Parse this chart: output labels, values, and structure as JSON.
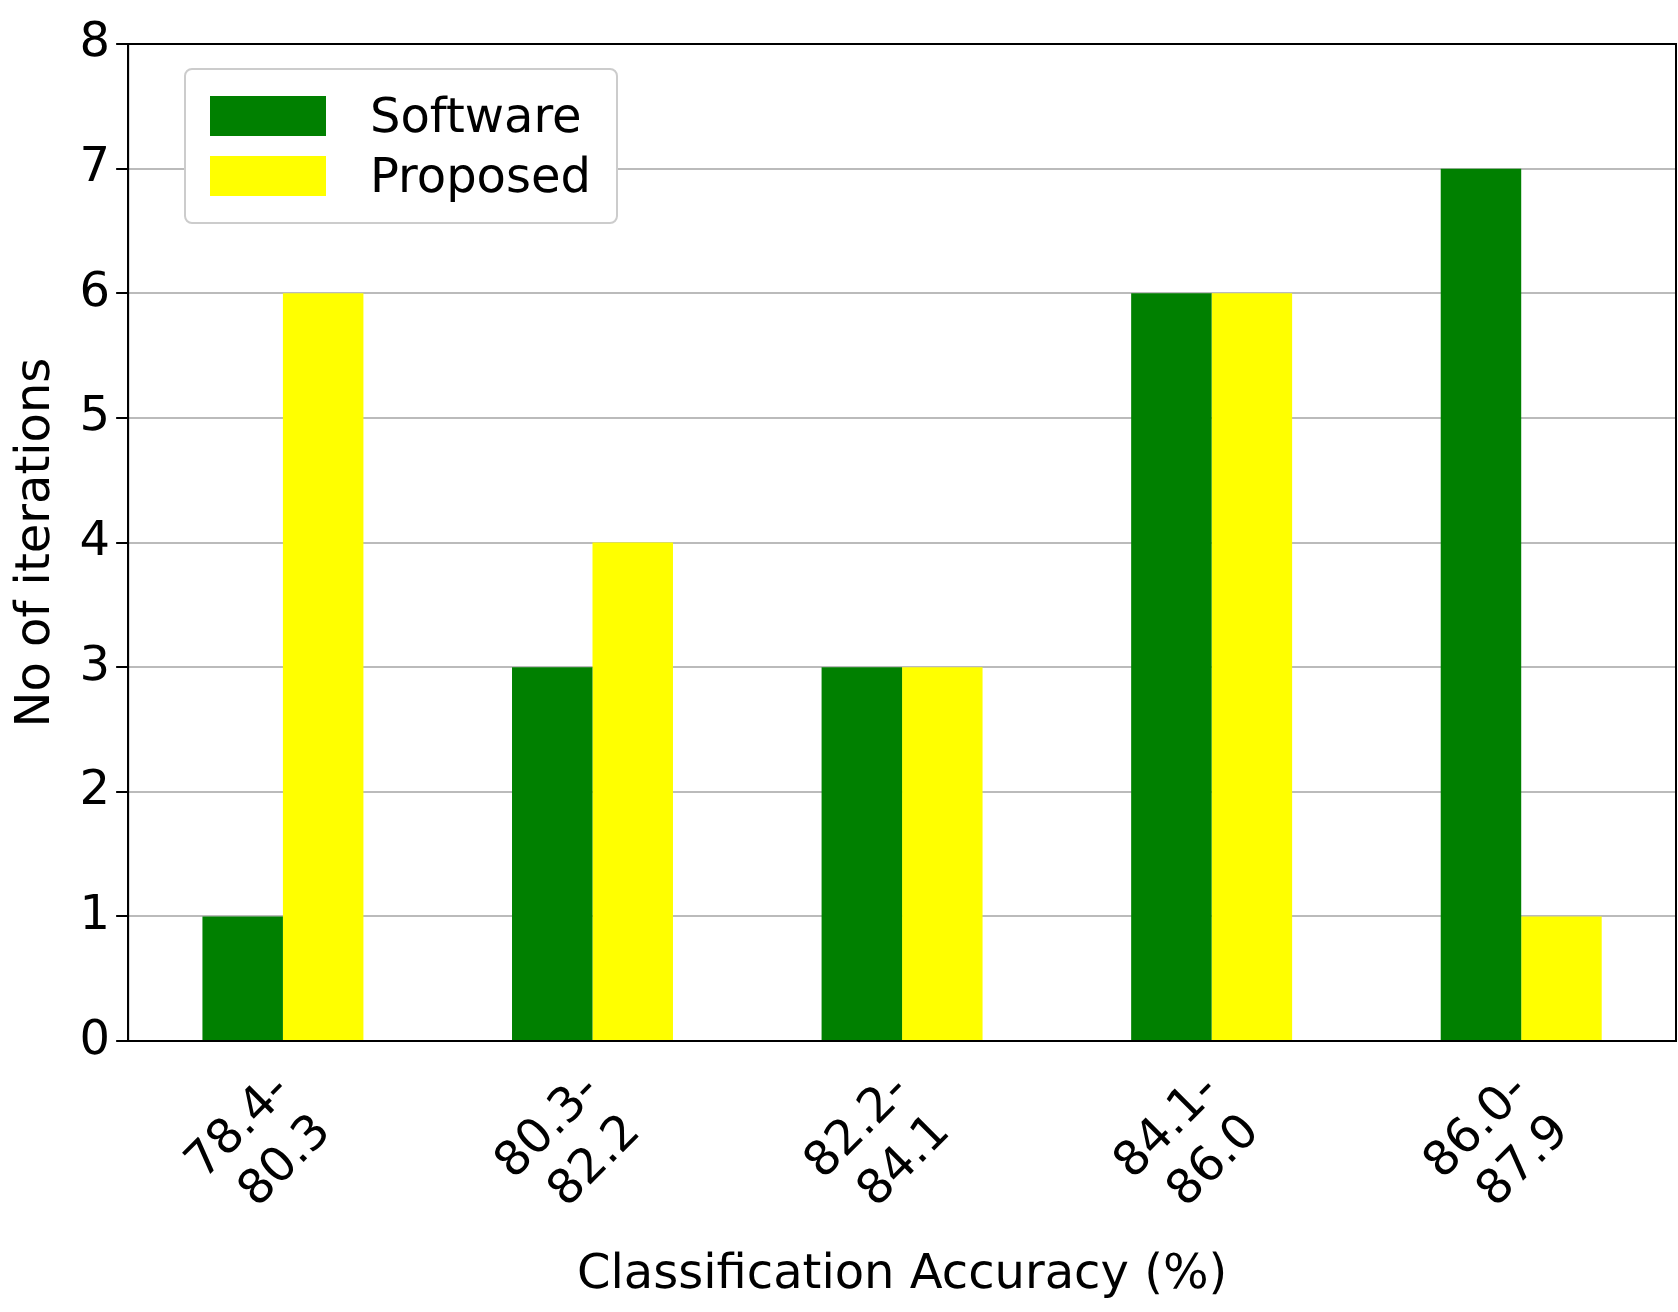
{
  "chart_data": {
    "type": "bar",
    "xlabel": "Classification Accuracy (%)",
    "ylabel": "No of iterations",
    "categories": [
      "78.4-80.3",
      "80.3-82.2",
      "82.2-84.1",
      "84.1-86.0",
      "86.0-87.9"
    ],
    "series": [
      {
        "name": "Software",
        "color": "#008000",
        "values": [
          1,
          3,
          3,
          6,
          7
        ]
      },
      {
        "name": "Proposed",
        "color": "#ffff00",
        "values": [
          6,
          4,
          3,
          6,
          1
        ]
      }
    ],
    "ylim": [
      0,
      8
    ],
    "yticks": [
      0,
      1,
      2,
      3,
      4,
      5,
      6,
      7,
      8
    ],
    "grid": "y",
    "legend": "top left"
  }
}
